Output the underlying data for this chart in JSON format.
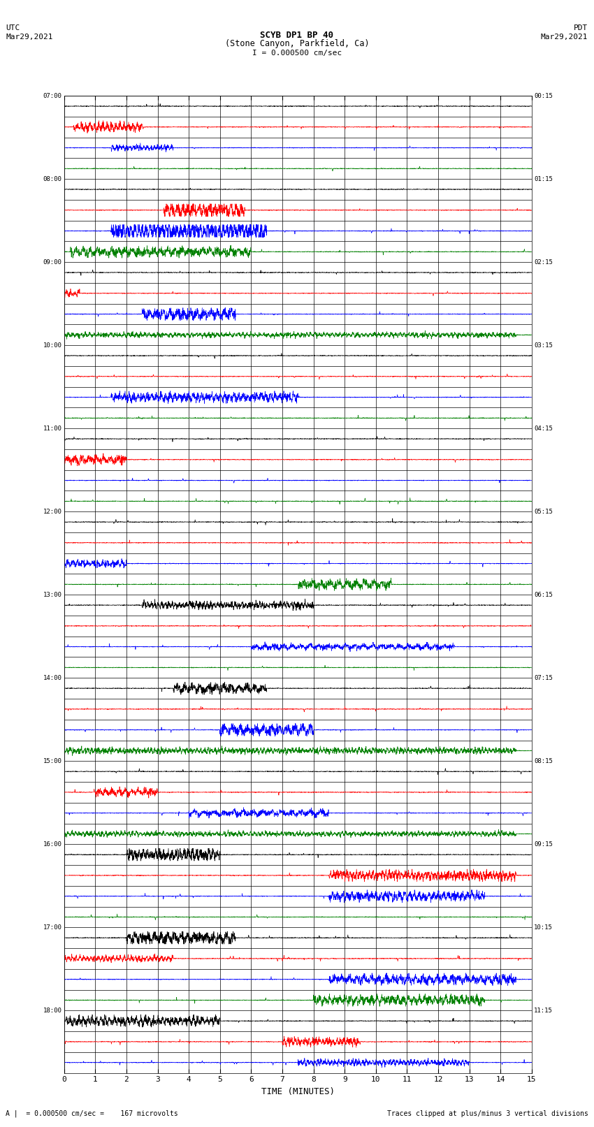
{
  "title_line1": "SCYB DP1 BP 40",
  "title_line2": "(Stone Canyon, Parkfield, Ca)",
  "scale_label": "I = 0.000500 cm/sec",
  "utc_label": "UTC\nMar29,2021",
  "pdt_label": "PDT\nMar29,2021",
  "xlabel": "TIME (MINUTES)",
  "footer_left": "A |  = 0.000500 cm/sec =    167 microvolts",
  "footer_right": "Traces clipped at plus/minus 3 vertical divisions",
  "xlim": [
    0,
    15
  ],
  "n_traces": 47,
  "bg_color": "#ffffff",
  "colors_cycle": [
    "black",
    "red",
    "blue",
    "green"
  ]
}
